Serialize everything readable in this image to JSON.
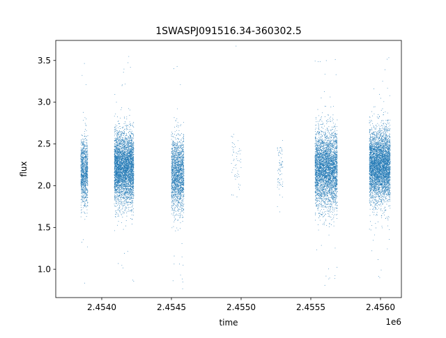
{
  "chart_data": {
    "type": "scatter",
    "title": "1SWASPJ091516.34-360302.5",
    "xlabel": "time",
    "ylabel": "flux",
    "x_offset_label": "1e6",
    "xlim": [
      2.45367,
      2.45615
    ],
    "ylim": [
      0.66,
      3.74
    ],
    "x_ticks": [
      2.454,
      2.4545,
      2.455,
      2.4555,
      2.456
    ],
    "x_tick_labels": [
      "2.4540",
      "2.4545",
      "2.4550",
      "2.4555",
      "2.4560"
    ],
    "y_ticks": [
      1.0,
      1.5,
      2.0,
      2.5,
      3.0,
      3.5
    ],
    "y_tick_labels": [
      "1.0",
      "1.5",
      "2.0",
      "2.5",
      "3.0",
      "3.5"
    ],
    "grid": false,
    "legend": "none",
    "point_color": "#1f77b4",
    "segments": [
      {
        "x_start": 2.45385,
        "x_end": 2.4539,
        "y_center": 2.18,
        "spread": 0.2,
        "count": 1100
      },
      {
        "x_start": 2.45409,
        "x_end": 2.45423,
        "y_center": 2.22,
        "spread": 0.21,
        "count": 4200
      },
      {
        "x_start": 2.4545,
        "x_end": 2.45459,
        "y_center": 2.15,
        "spread": 0.22,
        "count": 1900
      },
      {
        "x_start": 2.45493,
        "x_end": 2.455,
        "y_center": 2.3,
        "spread": 0.18,
        "count": 55
      },
      {
        "x_start": 2.45526,
        "x_end": 2.4553,
        "y_center": 2.22,
        "spread": 0.2,
        "count": 70
      },
      {
        "x_start": 2.45553,
        "x_end": 2.45569,
        "y_center": 2.2,
        "spread": 0.23,
        "count": 3900
      },
      {
        "x_start": 2.45592,
        "x_end": 2.45607,
        "y_center": 2.24,
        "spread": 0.21,
        "count": 4500
      }
    ]
  }
}
